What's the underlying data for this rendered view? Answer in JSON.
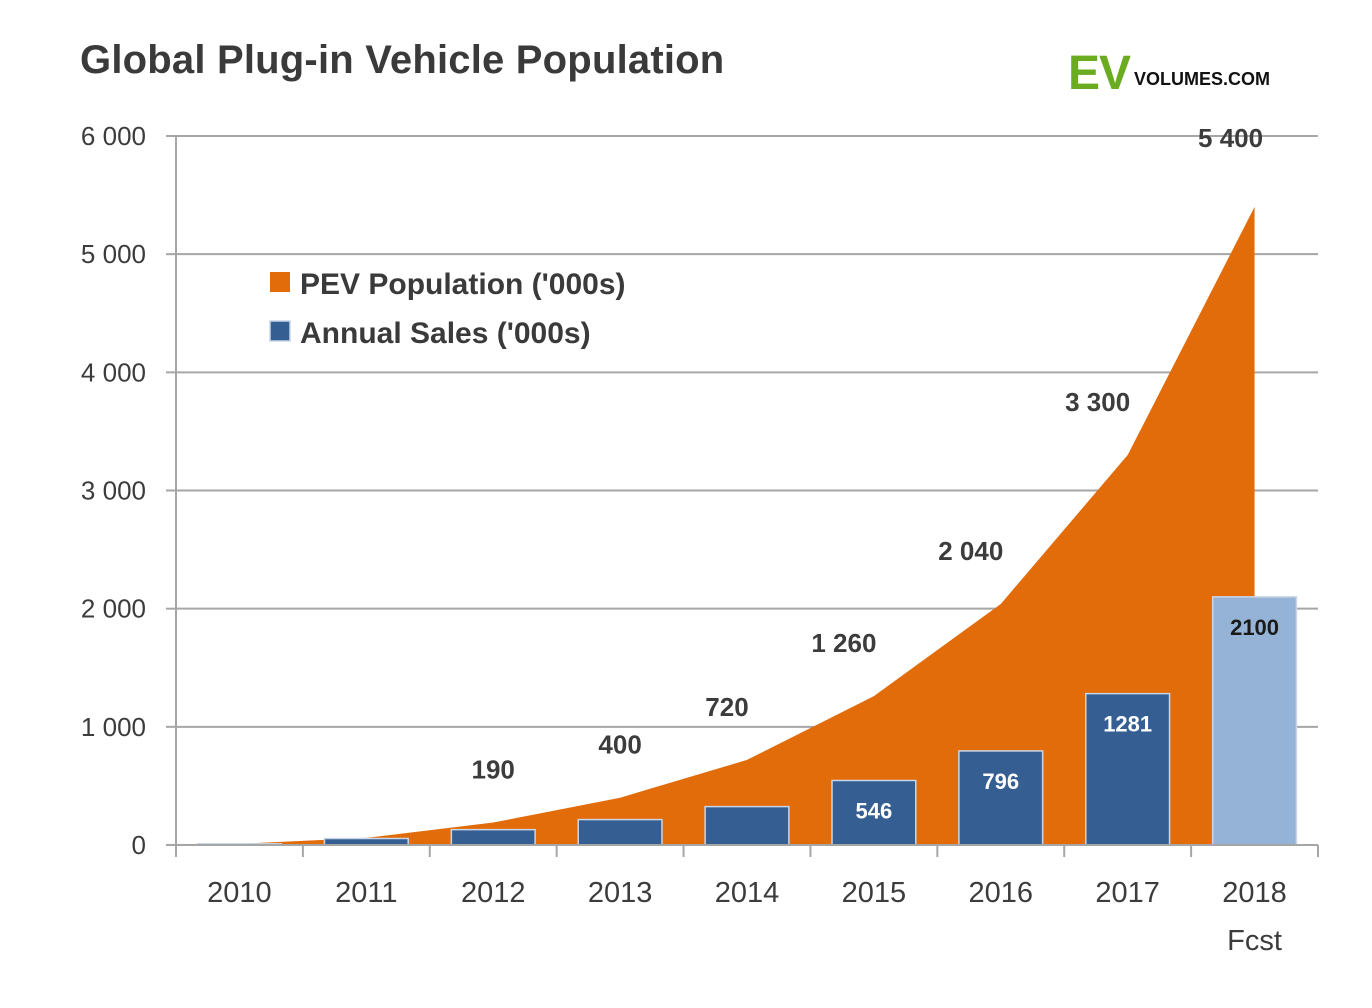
{
  "title": "Global Plug-in Vehicle Population",
  "logo": {
    "ev": "EV",
    "rest": "VOLUMES.COM",
    "ev_color": "#6aab1f"
  },
  "legend": {
    "population": "PEV Population ('000s)",
    "sales": "Annual Sales ('000s)"
  },
  "colors": {
    "area": "#e36c0a",
    "bar": "#355e92",
    "bar_forecast": "#95b3d7",
    "grid": "#a6a6a6"
  },
  "chart_data": {
    "type": "area",
    "categories": [
      "2010",
      "2011",
      "2012",
      "2013",
      "2014",
      "2015",
      "2016",
      "2017",
      "2018"
    ],
    "category_sublabels": [
      "",
      "",
      "",
      "",
      "",
      "",
      "",
      "",
      "Fcst"
    ],
    "ylim": [
      0,
      6000
    ],
    "yticks": [
      0,
      1000,
      2000,
      3000,
      4000,
      5000,
      6000
    ],
    "ytick_labels": [
      "0",
      "1 000",
      "2 000",
      "3 000",
      "4 000",
      "5 000",
      "6 000"
    ],
    "grid": true,
    "legend_position": "top-left",
    "series": [
      {
        "name": "PEV Population ('000s)",
        "type": "area",
        "values": [
          10,
          60,
          190,
          400,
          720,
          1260,
          2040,
          3300,
          5400
        ],
        "labels": [
          "",
          "",
          "190",
          "400",
          "720",
          "1 260",
          "2 040",
          "3 300",
          "5 400"
        ]
      },
      {
        "name": "Annual Sales ('000s)",
        "type": "bar",
        "values": [
          10,
          55,
          130,
          215,
          325,
          546,
          796,
          1281,
          2100
        ],
        "labels": [
          "",
          "",
          "",
          "",
          "",
          "546",
          "796",
          "1281",
          "2100"
        ],
        "forecast_index": 8
      }
    ]
  }
}
